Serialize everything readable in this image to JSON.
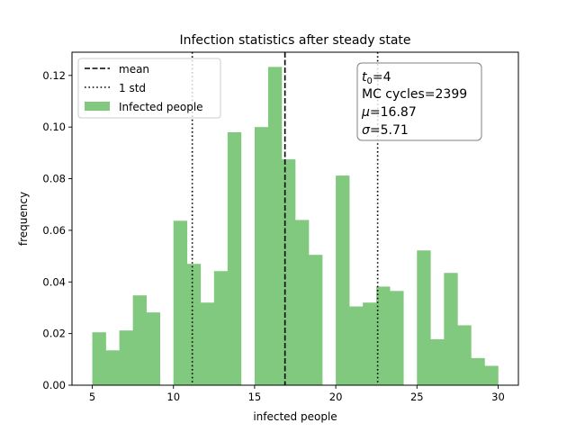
{
  "chart_data": {
    "type": "bar",
    "title": "Infection statistics after steady state",
    "xlabel": "infected people",
    "ylabel": "frequency",
    "xlim": [
      3.75,
      31.25
    ],
    "ylim": [
      0,
      0.129
    ],
    "xticks": [
      5,
      10,
      15,
      20,
      25,
      30
    ],
    "yticks": [
      0.0,
      0.02,
      0.04,
      0.06,
      0.08,
      0.1,
      0.12
    ],
    "ytick_labels": [
      "0.00",
      "0.02",
      "0.04",
      "0.06",
      "0.08",
      "0.10",
      "0.12"
    ],
    "bin_edges": [
      5.0,
      5.833,
      6.667,
      7.5,
      8.333,
      9.167,
      10.0,
      10.833,
      11.667,
      12.5,
      13.333,
      14.167,
      15.0,
      15.833,
      16.667,
      17.5,
      18.333,
      19.167,
      20.0,
      20.833,
      21.667,
      22.5,
      23.333,
      24.167,
      25.0,
      25.833,
      26.667,
      27.5,
      28.333,
      29.167,
      30.0
    ],
    "frequencies": [
      0.0205,
      0.0135,
      0.0212,
      0.0348,
      0.0282,
      0.0,
      0.0637,
      0.047,
      0.032,
      0.0442,
      0.098,
      0.0,
      0.1,
      0.1233,
      0.0875,
      0.064,
      0.0505,
      0.0,
      0.0812,
      0.0305,
      0.032,
      0.0382,
      0.0365,
      0.0,
      0.0522,
      0.0178,
      0.0435,
      0.0232,
      0.0105,
      0.0075
    ],
    "series": [
      {
        "name": "Infected people",
        "color": "#81c97e"
      }
    ],
    "mean": 16.87,
    "std": 5.71,
    "lines": {
      "mean_color": "#000000",
      "std_color": "#000000"
    },
    "legend": {
      "placement": "top-left",
      "entries": [
        {
          "label": "mean",
          "style": "dashed"
        },
        {
          "label": "1 std",
          "style": "dotted"
        },
        {
          "label": "Infected people",
          "style": "patch"
        }
      ]
    },
    "annotation": {
      "t0_sym": "t",
      "t0_sub": "0",
      "t0_value": "=4",
      "mc_cycles": "MC cycles=2399",
      "mu_sym": "μ",
      "mu_value": "=16.87",
      "sigma_sym": "σ",
      "sigma_value": "=5.71"
    },
    "grid": false
  }
}
